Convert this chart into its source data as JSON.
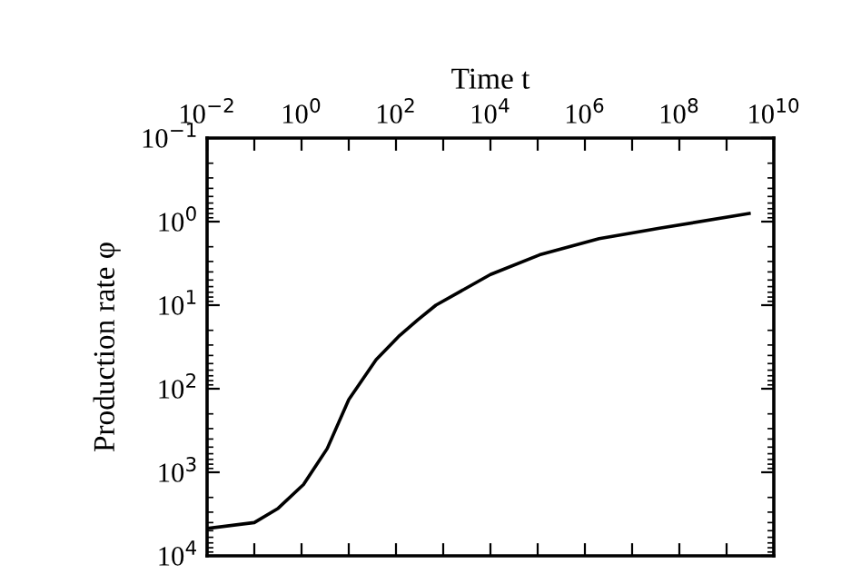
{
  "chart_data": {
    "type": "line",
    "xlabel": "Time t",
    "ylabel": "Production rate φ",
    "log": "xy",
    "grid": false,
    "legend": false,
    "marker": "none",
    "line_style": "solid",
    "x": [
      0.01,
      0.1,
      0.32,
      1.1,
      3.5,
      10,
      38,
      120,
      290,
      700,
      10000,
      110000,
      2000000,
      38000000,
      3000000000
    ],
    "series": [
      {
        "color": "#000000",
        "values": [
          4700,
          4000,
          2700,
          1400,
          520,
          135,
          45,
          23,
          15,
          10,
          4.3,
          2.5,
          1.6,
          1.2,
          0.8
        ]
      }
    ],
    "xlim": [
      0.01,
      10000000000
    ],
    "xticks": [
      {
        "value": 0.01,
        "label": "10$^{−2}$"
      },
      {
        "value": 0.1,
        "label": null
      },
      {
        "value": 1,
        "label": "10$^{0}$"
      },
      {
        "value": 10,
        "label": null
      },
      {
        "value": 100,
        "label": "10$^{2}$"
      },
      {
        "value": 1000,
        "label": null
      },
      {
        "value": 10000,
        "label": "10$^{4}$"
      },
      {
        "value": 100000,
        "label": null
      },
      {
        "value": 1000000,
        "label": "10$^{6}$"
      },
      {
        "value": 10000000,
        "label": null
      },
      {
        "value": 100000000,
        "label": "10$^{8}$"
      },
      {
        "value": 1000000000,
        "label": null
      },
      {
        "value": 10000000000,
        "label": "10$^{10}$"
      }
    ],
    "ylim": [
      10000,
      0.1
    ],
    "yticks": [
      {
        "value": 0.1,
        "label": "10$^{−1}$"
      },
      {
        "value": 1,
        "label": "10$^{0}$"
      },
      {
        "value": 10,
        "label": "10$^{1}$"
      },
      {
        "value": 100,
        "label": "10$^{2}$"
      },
      {
        "value": 1000,
        "label": "10$^{3}$"
      },
      {
        "value": 10000,
        "label": "10$^{4}$"
      }
    ]
  }
}
